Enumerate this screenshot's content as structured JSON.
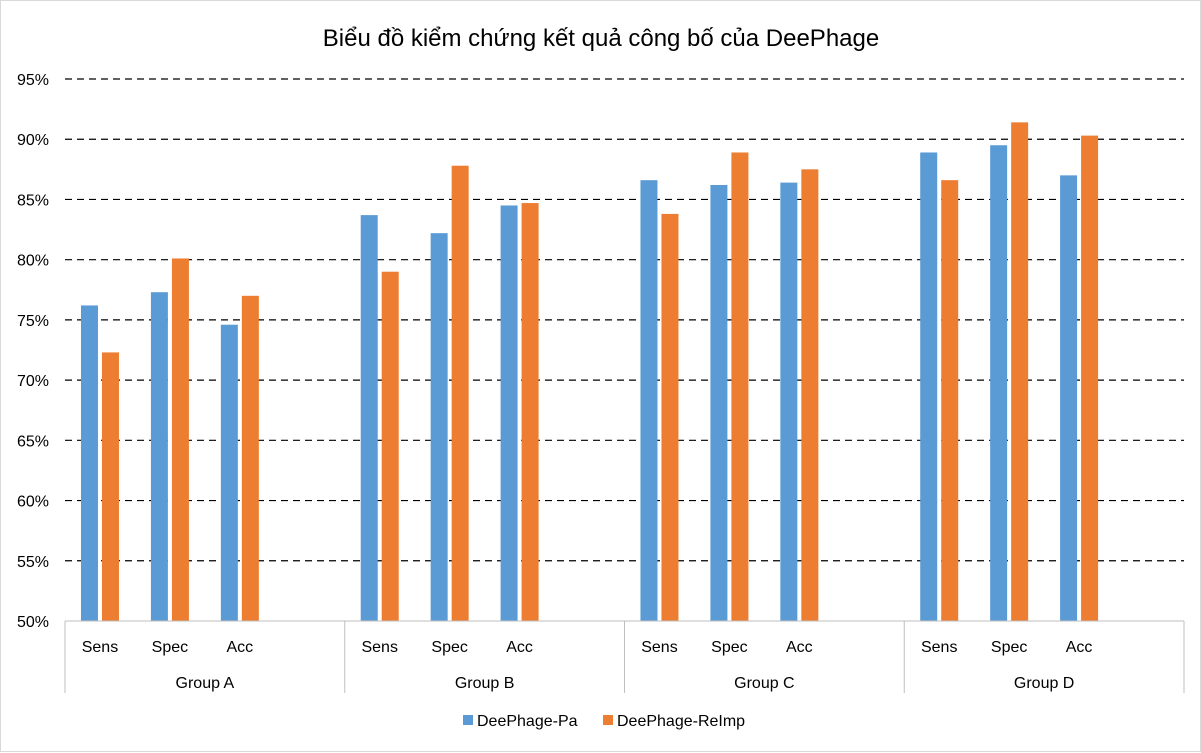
{
  "chart_data": {
    "type": "bar",
    "title": "Biểu đồ kiểm chứng kết quả công bố của DeePhage",
    "xlabel": "",
    "ylabel": "",
    "ylim": [
      50,
      95
    ],
    "ytick_step": 5,
    "ytick_suffix": "%",
    "grid": true,
    "legend_position": "bottom",
    "groups": [
      {
        "name": "Group A",
        "categories": [
          "Sens",
          "Spec",
          "Acc"
        ]
      },
      {
        "name": "Group B",
        "categories": [
          "Sens",
          "Spec",
          "Acc"
        ]
      },
      {
        "name": "Group C",
        "categories": [
          "Sens",
          "Spec",
          "Acc"
        ]
      },
      {
        "name": "Group D",
        "categories": [
          "Sens",
          "Spec",
          "Acc"
        ]
      }
    ],
    "series": [
      {
        "name": "DeePhage-Pa",
        "color": "#5b9bd5",
        "values": [
          76.2,
          77.3,
          74.6,
          83.7,
          82.2,
          84.5,
          86.6,
          86.2,
          86.4,
          88.9,
          89.5,
          87.0
        ]
      },
      {
        "name": "DeePhage-ReImp",
        "color": "#ed7d31",
        "values": [
          72.3,
          80.1,
          77.0,
          79.0,
          87.8,
          84.7,
          83.8,
          88.9,
          87.5,
          86.6,
          91.4,
          90.3
        ]
      }
    ]
  }
}
